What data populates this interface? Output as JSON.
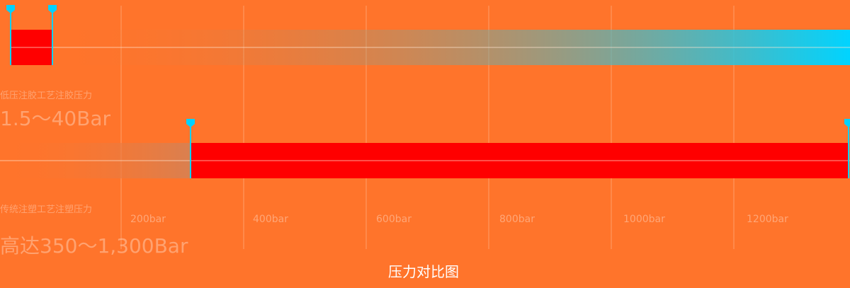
{
  "chart_data": {
    "type": "bar",
    "title": "压力对比图",
    "x_unit": "bar",
    "x_ticks": [
      "200bar",
      "400bar",
      "600bar",
      "800bar",
      "1000bar",
      "1200bar"
    ],
    "grid": true,
    "series": [
      {
        "name": "低压注胶工艺注胶压力",
        "value_label": "1.5～40Bar",
        "range": [
          1.5,
          40
        ]
      },
      {
        "name": "传统注塑工艺注塑压力",
        "value_label": "高达350～1,300Bar",
        "range": [
          350,
          1300
        ]
      }
    ]
  },
  "colors": {
    "background": "#ff742b",
    "bar": "#ff0000",
    "marker": "#00d2ff",
    "gradient_end": "#00d4ff"
  }
}
